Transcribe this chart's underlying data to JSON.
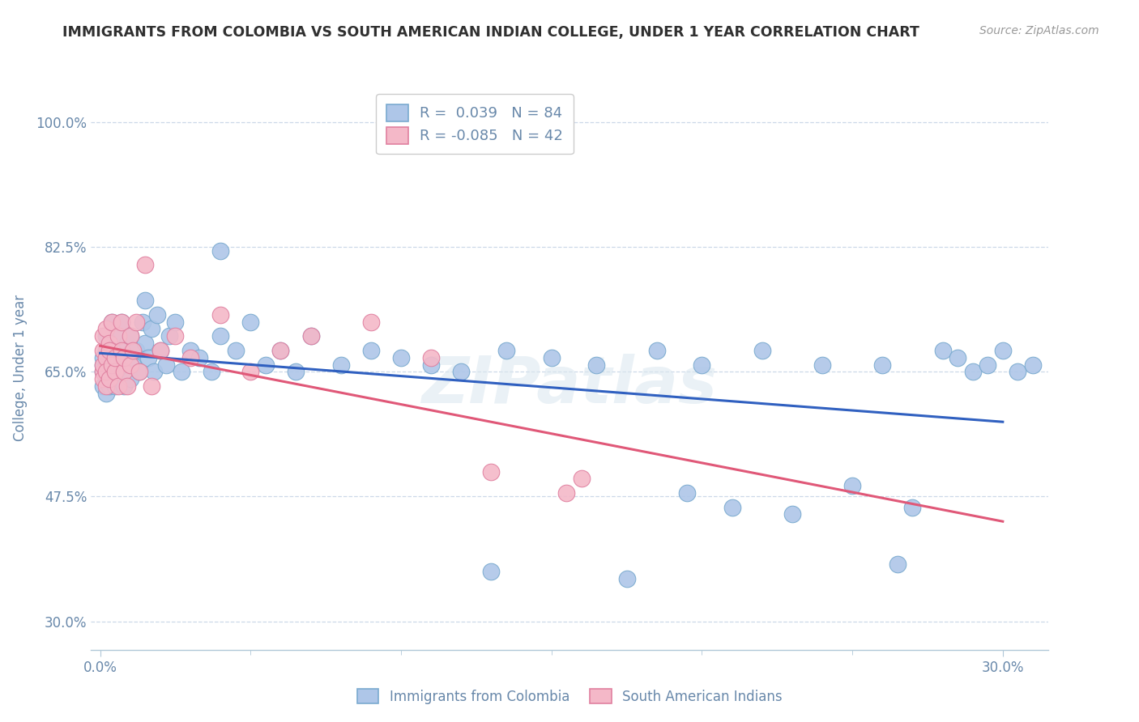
{
  "title": "IMMIGRANTS FROM COLOMBIA VS SOUTH AMERICAN INDIAN COLLEGE, UNDER 1 YEAR CORRELATION CHART",
  "source": "Source: ZipAtlas.com",
  "ylabel": "College, Under 1 year",
  "xlim": [
    -0.003,
    0.315
  ],
  "ylim": [
    0.26,
    1.05
  ],
  "xtick_labels": [
    "0.0%",
    "30.0%"
  ],
  "ytick_positions": [
    1.0,
    0.825,
    0.65,
    0.475,
    0.3
  ],
  "ytick_labels": [
    "100.0%",
    "82.5%",
    "65.0%",
    "47.5%",
    "30.0%"
  ],
  "legend_entry1": "R =  0.039   N = 84",
  "legend_entry2": "R = -0.085   N = 42",
  "legend_label1": "Immigrants from Colombia",
  "legend_label2": "South American Indians",
  "blue_color": "#aec6e8",
  "blue_edge": "#7aaacf",
  "pink_color": "#f4b8c8",
  "pink_edge": "#e080a0",
  "blue_line_color": "#3060c0",
  "pink_line_color": "#e05878",
  "axis_color": "#6888aa",
  "grid_color": "#ccd8e8",
  "title_color": "#303030",
  "blue_x": [
    0.001,
    0.001,
    0.001,
    0.001,
    0.002,
    0.002,
    0.002,
    0.002,
    0.002,
    0.003,
    0.003,
    0.003,
    0.003,
    0.004,
    0.004,
    0.004,
    0.005,
    0.005,
    0.005,
    0.006,
    0.006,
    0.007,
    0.007,
    0.007,
    0.008,
    0.008,
    0.009,
    0.009,
    0.01,
    0.01,
    0.011,
    0.012,
    0.013,
    0.014,
    0.015,
    0.015,
    0.016,
    0.017,
    0.018,
    0.019,
    0.02,
    0.022,
    0.023,
    0.025,
    0.027,
    0.03,
    0.033,
    0.037,
    0.04,
    0.045,
    0.05,
    0.055,
    0.06,
    0.065,
    0.07,
    0.08,
    0.09,
    0.1,
    0.11,
    0.12,
    0.135,
    0.15,
    0.165,
    0.185,
    0.2,
    0.22,
    0.24,
    0.26,
    0.28,
    0.285,
    0.29,
    0.295,
    0.3,
    0.305,
    0.31,
    0.195,
    0.21,
    0.23,
    0.25,
    0.27,
    0.265,
    0.175,
    0.13,
    0.04
  ],
  "blue_y": [
    0.65,
    0.66,
    0.67,
    0.63,
    0.68,
    0.64,
    0.7,
    0.62,
    0.66,
    0.65,
    0.69,
    0.63,
    0.67,
    0.64,
    0.68,
    0.72,
    0.65,
    0.63,
    0.67,
    0.7,
    0.64,
    0.66,
    0.68,
    0.72,
    0.65,
    0.63,
    0.67,
    0.69,
    0.64,
    0.7,
    0.66,
    0.68,
    0.65,
    0.72,
    0.69,
    0.75,
    0.67,
    0.71,
    0.65,
    0.73,
    0.68,
    0.66,
    0.7,
    0.72,
    0.65,
    0.68,
    0.67,
    0.65,
    0.7,
    0.68,
    0.72,
    0.66,
    0.68,
    0.65,
    0.7,
    0.66,
    0.68,
    0.67,
    0.66,
    0.65,
    0.68,
    0.67,
    0.66,
    0.68,
    0.66,
    0.68,
    0.66,
    0.66,
    0.68,
    0.67,
    0.65,
    0.66,
    0.68,
    0.65,
    0.66,
    0.48,
    0.46,
    0.45,
    0.49,
    0.46,
    0.38,
    0.36,
    0.37,
    0.82
  ],
  "pink_x": [
    0.001,
    0.001,
    0.001,
    0.001,
    0.001,
    0.002,
    0.002,
    0.002,
    0.002,
    0.003,
    0.003,
    0.003,
    0.004,
    0.004,
    0.005,
    0.005,
    0.006,
    0.006,
    0.007,
    0.007,
    0.008,
    0.008,
    0.009,
    0.01,
    0.01,
    0.011,
    0.012,
    0.013,
    0.015,
    0.017,
    0.02,
    0.025,
    0.03,
    0.04,
    0.05,
    0.06,
    0.07,
    0.09,
    0.11,
    0.13,
    0.155,
    0.16
  ],
  "pink_y": [
    0.65,
    0.66,
    0.68,
    0.64,
    0.7,
    0.63,
    0.67,
    0.71,
    0.65,
    0.69,
    0.64,
    0.68,
    0.66,
    0.72,
    0.65,
    0.67,
    0.7,
    0.63,
    0.68,
    0.72,
    0.65,
    0.67,
    0.63,
    0.7,
    0.66,
    0.68,
    0.72,
    0.65,
    0.8,
    0.63,
    0.68,
    0.7,
    0.67,
    0.73,
    0.65,
    0.68,
    0.7,
    0.72,
    0.67,
    0.51,
    0.48,
    0.5
  ]
}
